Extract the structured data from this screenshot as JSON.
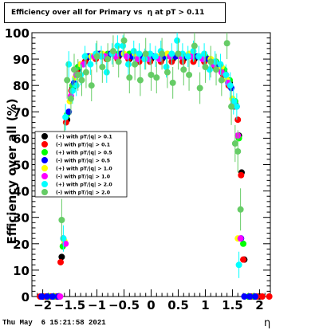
{
  "chart_data": {
    "type": "scatter",
    "title": "Efficiency over all for Primary vs  η at pT > 0.11",
    "xlabel": "η",
    "ylabel": "Efficiency over all (%)",
    "xlim": [
      -2.2,
      2.2
    ],
    "ylim": [
      0,
      100
    ],
    "x_ticks": [
      "−2",
      "−1.5",
      "−1",
      "−0.5",
      "0",
      "0.5",
      "1",
      "1.5",
      "2"
    ],
    "y_ticks": [
      "0",
      "10",
      "20",
      "30",
      "40",
      "50",
      "60",
      "70",
      "80",
      "90",
      "100"
    ],
    "grid": false,
    "legend_position": "left-middle",
    "series": [
      {
        "name": "(+) with pT/|q| > 0.1",
        "color": "#000000",
        "errors": false,
        "x": [
          -2.0,
          -1.9,
          -1.8,
          -1.7,
          -1.65,
          -1.55,
          -1.45,
          -1.35,
          -1.2,
          -1.0,
          -0.8,
          -0.6,
          -0.4,
          -0.2,
          0.0,
          0.2,
          0.4,
          0.6,
          0.8,
          1.0,
          1.2,
          1.35,
          1.45,
          1.55,
          1.62,
          1.67,
          1.72,
          1.8,
          1.9,
          2.0
        ],
        "y": [
          0,
          0,
          0,
          0,
          15,
          67,
          79,
          86,
          90,
          91,
          91,
          91,
          90,
          90,
          90,
          90,
          90,
          90,
          90,
          90,
          88,
          85,
          81,
          73,
          61,
          47,
          14,
          0,
          0,
          0
        ]
      },
      {
        "name": "(-) with pT/|q| > 0.1",
        "color": "#ff0000",
        "errors": false,
        "x": [
          -2.05,
          -1.95,
          -1.85,
          -1.75,
          -1.67,
          -1.57,
          -1.47,
          -1.37,
          -1.22,
          -1.02,
          -0.82,
          -0.62,
          -0.42,
          -0.22,
          -0.02,
          0.18,
          0.38,
          0.58,
          0.78,
          0.98,
          1.18,
          1.33,
          1.43,
          1.53,
          1.6,
          1.66,
          1.7,
          1.85,
          1.95,
          2.05,
          2.18
        ],
        "y": [
          0,
          0,
          0,
          0,
          13,
          66,
          78,
          85,
          89,
          90,
          90,
          90,
          90,
          89,
          89,
          89,
          89,
          89,
          89,
          89,
          87,
          84,
          80,
          72,
          67,
          46,
          14,
          0,
          0,
          0,
          0
        ]
      },
      {
        "name": "(+) with pT/|q| > 0.5",
        "color": "#00ff00",
        "errors": false,
        "x": [
          -1.9,
          -1.8,
          -1.7,
          -1.63,
          -1.55,
          -1.45,
          -1.35,
          -1.2,
          -1.0,
          -0.8,
          -0.6,
          -0.4,
          -0.2,
          0.0,
          0.2,
          0.4,
          0.6,
          0.8,
          1.0,
          1.2,
          1.35,
          1.45,
          1.55,
          1.62,
          1.7,
          1.8,
          1.9
        ],
        "y": [
          0,
          0,
          0,
          19,
          69,
          80,
          87,
          91,
          92,
          92,
          92,
          92,
          91,
          91,
          91,
          91,
          91,
          91,
          91,
          89,
          86,
          82,
          74,
          60,
          20,
          0,
          0
        ]
      },
      {
        "name": "(-) with pT/|q| > 0.5",
        "color": "#0000ff",
        "errors": false,
        "x": [
          -2.02,
          -1.92,
          -1.82,
          -1.72,
          -1.62,
          -1.52,
          -1.42,
          -1.3,
          -1.15,
          -0.95,
          -0.75,
          -0.55,
          -0.35,
          -0.15,
          0.05,
          0.25,
          0.45,
          0.65,
          0.85,
          1.05,
          1.25,
          1.38,
          1.48,
          1.58,
          1.66,
          1.72,
          1.82,
          1.92
        ],
        "y": [
          0,
          0,
          0,
          0,
          22,
          70,
          81,
          88,
          91,
          92,
          92,
          92,
          91,
          91,
          91,
          91,
          91,
          91,
          91,
          90,
          87,
          84,
          79,
          72,
          22,
          0,
          0,
          0
        ]
      },
      {
        "name": "(+) with pT/|q| > 1.0",
        "color": "#ffff00",
        "errors": false,
        "x": [
          -1.6,
          -1.5,
          -1.4,
          -1.3,
          -1.1,
          -0.9,
          -0.7,
          -0.5,
          -0.3,
          -0.1,
          0.1,
          0.3,
          0.5,
          0.7,
          0.9,
          1.1,
          1.3,
          1.4,
          1.5,
          1.6
        ],
        "y": [
          21,
          74,
          83,
          88,
          91,
          92,
          92,
          92,
          92,
          91,
          91,
          92,
          92,
          92,
          91,
          90,
          87,
          82,
          75,
          22
        ]
      },
      {
        "name": "(-) with pT/|q| > 1.0",
        "color": "#ff00ff",
        "errors": false,
        "x": [
          -1.68,
          -1.58,
          -1.48,
          -1.38,
          -1.25,
          -1.05,
          -0.85,
          -0.65,
          -0.45,
          -0.25,
          -0.05,
          0.15,
          0.35,
          0.55,
          0.75,
          0.95,
          1.15,
          1.3,
          1.42,
          1.52,
          1.6,
          1.65
        ],
        "y": [
          0,
          20,
          76,
          84,
          88,
          91,
          91,
          91,
          91,
          90,
          90,
          90,
          91,
          91,
          91,
          90,
          88,
          85,
          81,
          73,
          61,
          22
        ]
      },
      {
        "name": "(+) with pT/|q| > 2.0",
        "color": "#00ffff",
        "errors": true,
        "x": [
          -1.62,
          -1.58,
          -1.52,
          -1.45,
          -1.38,
          -1.3,
          -1.22,
          -1.12,
          -1.02,
          -0.92,
          -0.82,
          -0.72,
          -0.62,
          -0.52,
          -0.42,
          -0.32,
          -0.22,
          -0.12,
          -0.02,
          0.08,
          0.18,
          0.28,
          0.38,
          0.48,
          0.58,
          0.68,
          0.78,
          0.88,
          0.98,
          1.08,
          1.18,
          1.28,
          1.38,
          1.46,
          1.52,
          1.58,
          1.62
        ],
        "y": [
          22,
          68,
          88,
          78,
          80,
          84,
          91,
          88,
          92,
          91,
          85,
          92,
          95,
          95,
          88,
          93,
          92,
          90,
          92,
          91,
          93,
          87,
          92,
          97,
          92,
          91,
          93,
          91,
          92,
          86,
          89,
          88,
          84,
          80,
          74,
          72,
          12
        ],
        "err": [
          5,
          5,
          5,
          5,
          4,
          4,
          4,
          4,
          4,
          4,
          4,
          4,
          4,
          4,
          4,
          4,
          4,
          4,
          4,
          4,
          4,
          4,
          4,
          4,
          4,
          4,
          4,
          4,
          4,
          4,
          4,
          4,
          4,
          5,
          5,
          5,
          5
        ]
      },
      {
        "name": "(-) with pT/|q| > 2.0",
        "color": "#66cc66",
        "errors": true,
        "x": [
          -1.65,
          -1.6,
          -1.55,
          -1.48,
          -1.42,
          -1.35,
          -1.28,
          -1.2,
          -1.1,
          -1.0,
          -0.9,
          -0.8,
          -0.7,
          -0.6,
          -0.5,
          -0.4,
          -0.3,
          -0.2,
          -0.1,
          0.0,
          0.1,
          0.2,
          0.3,
          0.4,
          0.5,
          0.6,
          0.7,
          0.8,
          0.9,
          1.0,
          1.1,
          1.2,
          1.3,
          1.4,
          1.48,
          1.55,
          1.6,
          1.65
        ],
        "y": [
          29,
          58,
          82,
          75,
          86,
          84,
          82,
          85,
          80,
          91,
          87,
          90,
          93,
          89,
          97,
          83,
          88,
          82,
          92,
          84,
          83,
          92,
          85,
          81,
          92,
          86,
          84,
          95,
          79,
          87,
          89,
          86,
          82,
          96,
          72,
          58,
          55,
          33
        ],
        "err": [
          8,
          8,
          7,
          6,
          6,
          6,
          6,
          6,
          6,
          6,
          6,
          6,
          6,
          6,
          6,
          6,
          6,
          6,
          6,
          6,
          6,
          6,
          6,
          6,
          6,
          6,
          6,
          6,
          6,
          6,
          6,
          6,
          6,
          6,
          7,
          7,
          8,
          8
        ]
      }
    ]
  },
  "footer": {
    "timestamp": "Thu May  6 15:21:58 2021"
  }
}
